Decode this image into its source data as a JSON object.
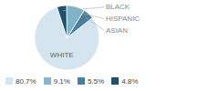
{
  "chart_data": {
    "type": "pie",
    "categories": [
      "WHITE",
      "ASIAN",
      "HISPANIC",
      "BLACK"
    ],
    "values": [
      80.7,
      5.5,
      9.1,
      4.8
    ],
    "colors": [
      "#d5e5ef",
      "#4a7f9c",
      "#7fb3c8",
      "#1e4f6b"
    ],
    "legend": "bottom",
    "legend_items": [
      {
        "value": 80.7,
        "label": "80.7%",
        "color": "#d5e5ef"
      },
      {
        "value": 9.1,
        "label": "9.1%",
        "color": "#8ab4c8"
      },
      {
        "value": 5.5,
        "label": "5.5%",
        "color": "#4a7f9c"
      },
      {
        "value": 4.8,
        "label": "4.8%",
        "color": "#1e4f6b"
      }
    ]
  }
}
